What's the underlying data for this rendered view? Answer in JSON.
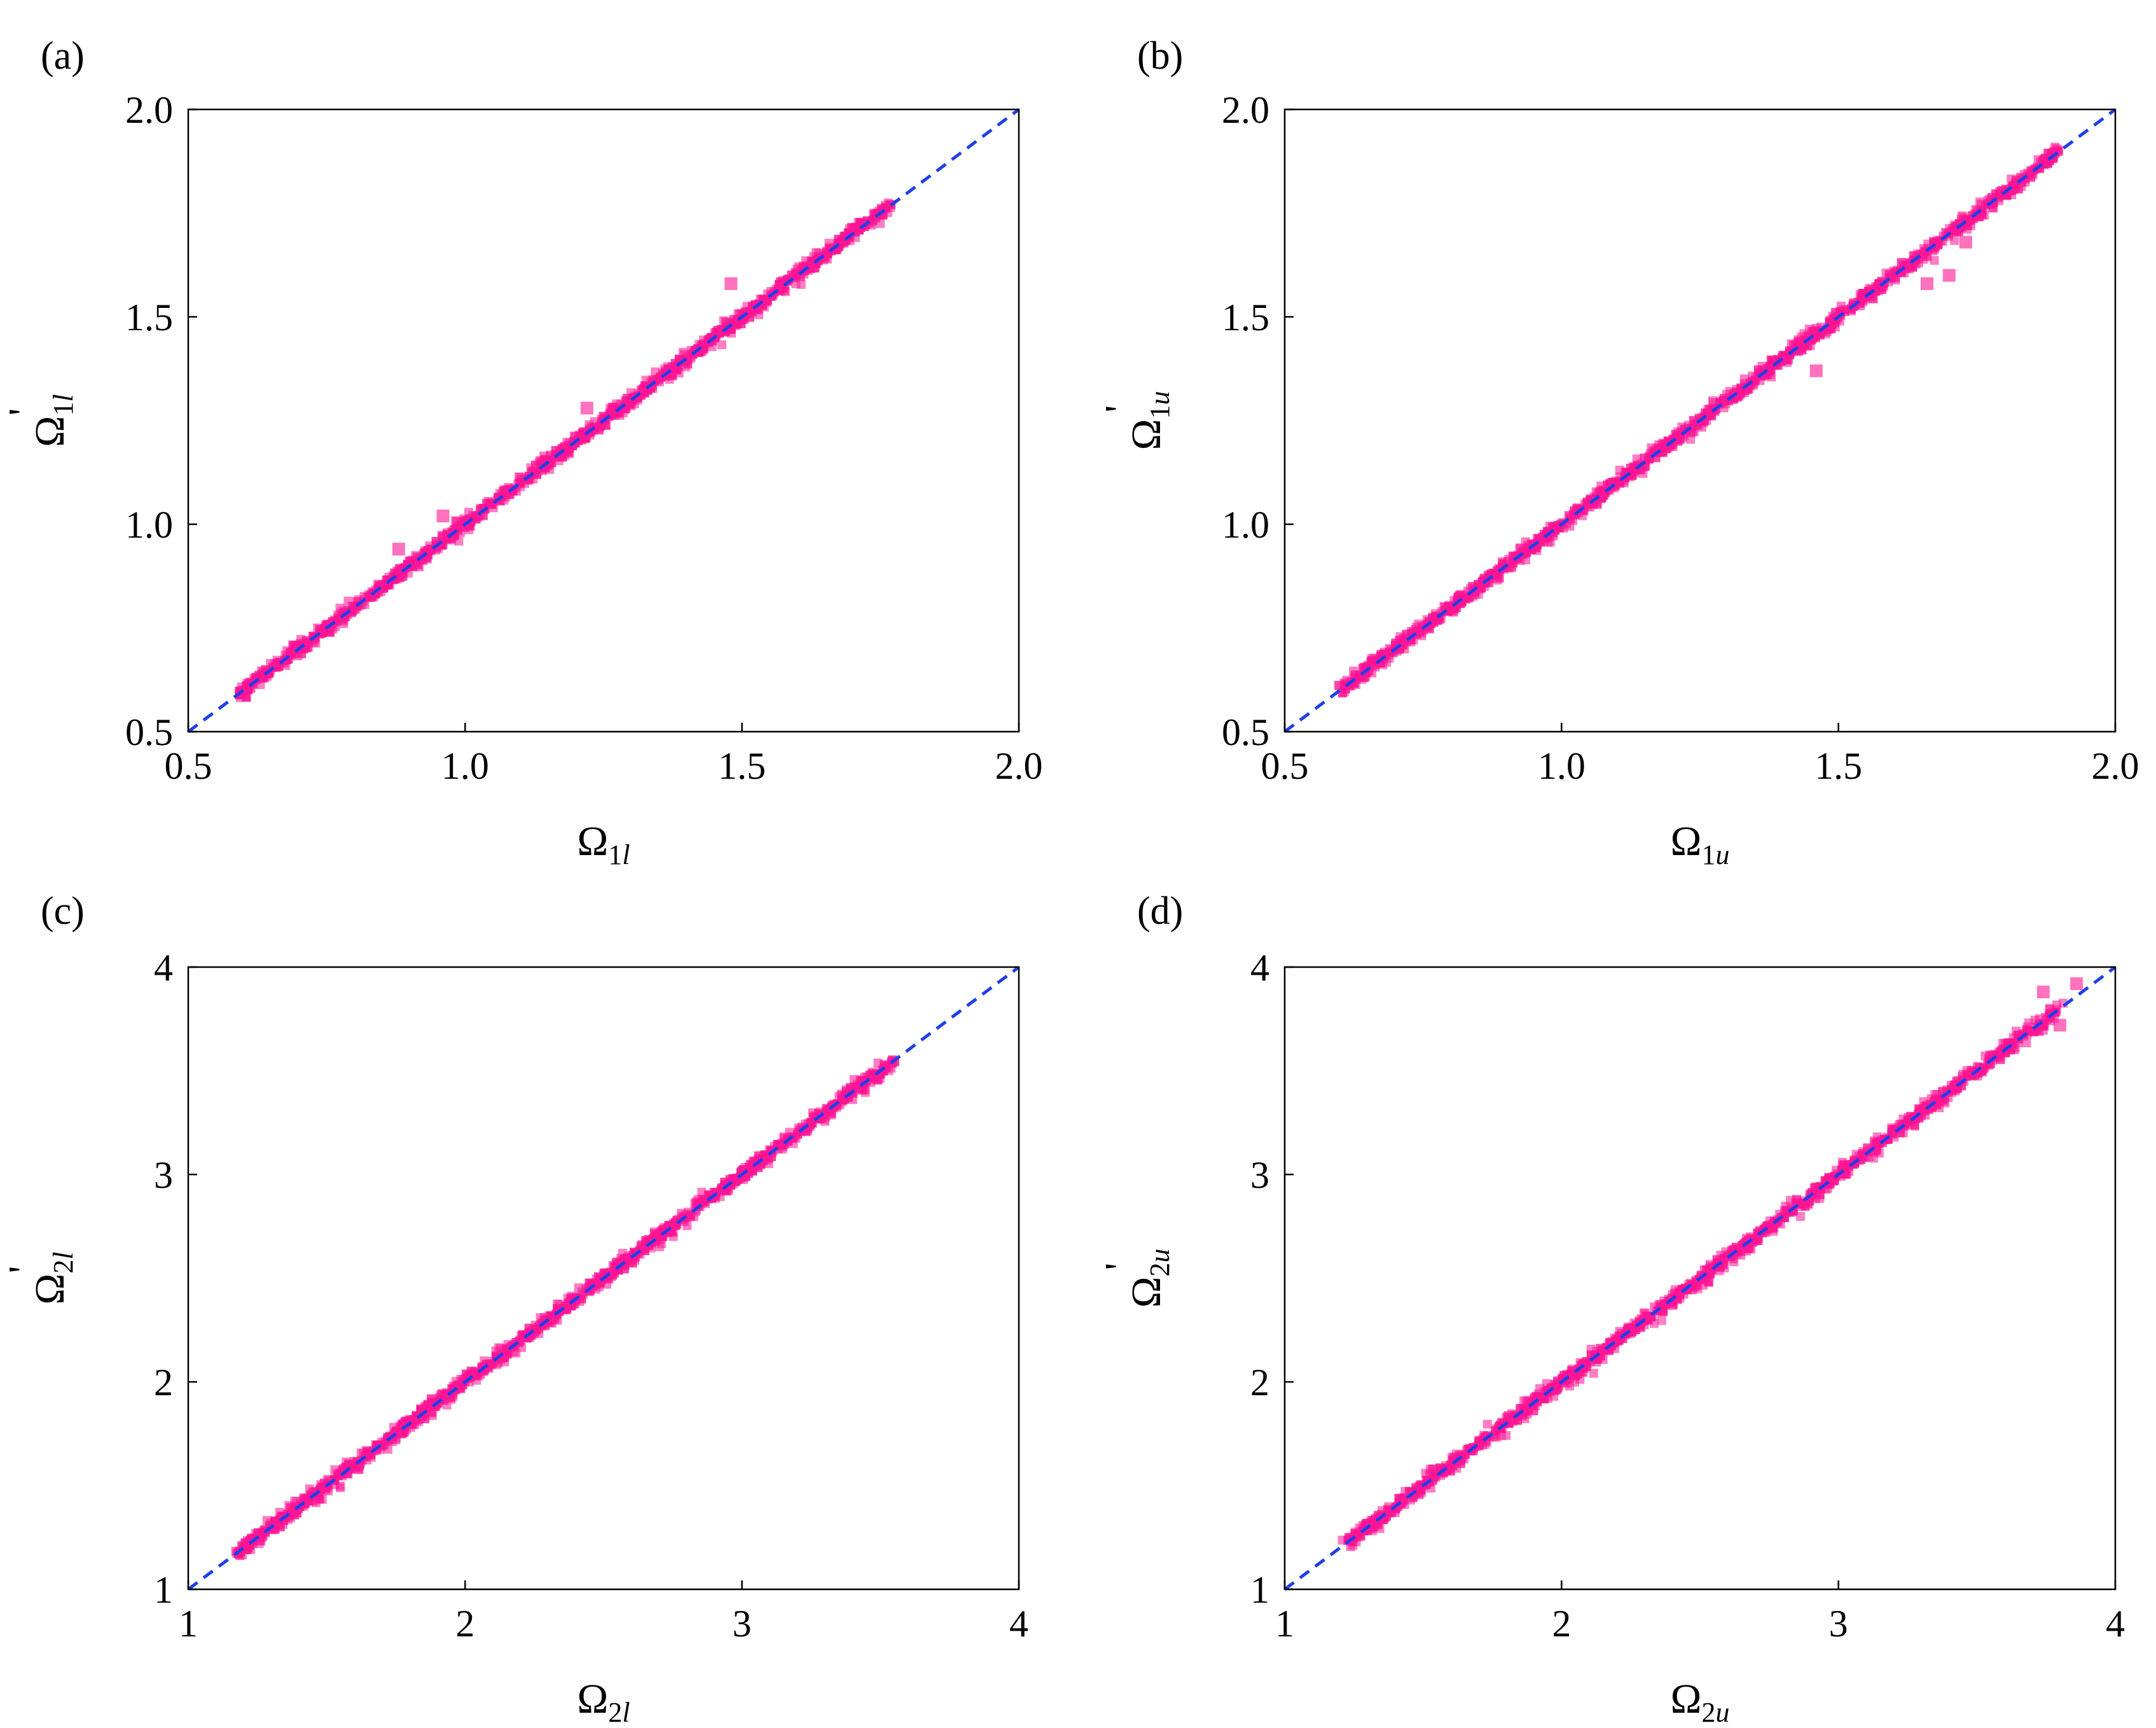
{
  "colors": {
    "points": "#ff1493",
    "reference_line": "#1f3fe8",
    "axes": "#000000",
    "background": "#ffffff"
  },
  "chart_data": [
    {
      "type": "scatter",
      "panel_label": "(a)",
      "title": "",
      "xlabel": {
        "base": "Ω",
        "sub_num": "1",
        "sub_var": "l"
      },
      "ylabel": {
        "base": "Ω",
        "sub_num": "1",
        "sub_var": "l",
        "prime": "'"
      },
      "xlim": [
        0.5,
        2.0
      ],
      "ylim": [
        0.5,
        2.0
      ],
      "xticks": [
        "0.5",
        "1.0",
        "1.5",
        "2.0"
      ],
      "yticks": [
        "0.5",
        "1.0",
        "1.5",
        "2.0"
      ],
      "xtick_values": [
        0.5,
        1.0,
        1.5,
        2.0
      ],
      "ytick_values": [
        0.5,
        1.0,
        1.5,
        2.0
      ],
      "reference_line": {
        "style": "dashed",
        "from": [
          0.5,
          0.5
        ],
        "to": [
          2.0,
          2.0
        ]
      },
      "point_range": [
        0.59,
        1.77
      ],
      "outliers": [
        [
          1.48,
          1.58
        ],
        [
          0.96,
          1.02
        ],
        [
          0.88,
          0.94
        ],
        [
          1.22,
          1.28
        ]
      ],
      "grid": false,
      "legend": "none"
    },
    {
      "type": "scatter",
      "panel_label": "(b)",
      "title": "",
      "xlabel": {
        "base": "Ω",
        "sub_num": "1",
        "sub_var": "u"
      },
      "ylabel": {
        "base": "Ω",
        "sub_num": "1",
        "sub_var": "u",
        "prime": "'"
      },
      "xlim": [
        0.5,
        2.0
      ],
      "ylim": [
        0.5,
        2.0
      ],
      "xticks": [
        "0.5",
        "1.0",
        "1.5",
        "2.0"
      ],
      "yticks": [
        "0.5",
        "1.0",
        "1.5",
        "2.0"
      ],
      "xtick_values": [
        0.5,
        1.0,
        1.5,
        2.0
      ],
      "ytick_values": [
        0.5,
        1.0,
        1.5,
        2.0
      ],
      "reference_line": {
        "style": "dashed",
        "from": [
          0.5,
          0.5
        ],
        "to": [
          2.0,
          2.0
        ]
      },
      "point_range": [
        0.6,
        1.9
      ],
      "outliers": [
        [
          1.46,
          1.37
        ],
        [
          1.7,
          1.6
        ],
        [
          1.66,
          1.58
        ],
        [
          1.73,
          1.68
        ]
      ],
      "grid": false,
      "legend": "none"
    },
    {
      "type": "scatter",
      "panel_label": "(c)",
      "title": "",
      "xlabel": {
        "base": "Ω",
        "sub_num": "2",
        "sub_var": "l"
      },
      "ylabel": {
        "base": "Ω",
        "sub_num": "2",
        "sub_var": "l",
        "prime": "'"
      },
      "xlim": [
        1,
        4
      ],
      "ylim": [
        1,
        4
      ],
      "xticks": [
        "1",
        "2",
        "3",
        "4"
      ],
      "yticks": [
        "1",
        "2",
        "3",
        "4"
      ],
      "xtick_values": [
        1,
        2,
        3,
        4
      ],
      "ytick_values": [
        1,
        2,
        3,
        4
      ],
      "reference_line": {
        "style": "dashed",
        "from": [
          1,
          1
        ],
        "to": [
          4,
          4
        ]
      },
      "point_range": [
        1.17,
        3.55
      ],
      "outliers": [],
      "grid": false,
      "legend": "none"
    },
    {
      "type": "scatter",
      "panel_label": "(d)",
      "title": "",
      "xlabel": {
        "base": "Ω",
        "sub_num": "2",
        "sub_var": "u"
      },
      "ylabel": {
        "base": "Ω",
        "sub_num": "2",
        "sub_var": "u",
        "prime": "'"
      },
      "xlim": [
        1,
        4
      ],
      "ylim": [
        1,
        4
      ],
      "xticks": [
        "1",
        "2",
        "3",
        "4"
      ],
      "yticks": [
        "1",
        "2",
        "3",
        "4"
      ],
      "xtick_values": [
        1,
        2,
        3,
        4
      ],
      "ytick_values": [
        1,
        2,
        3,
        4
      ],
      "reference_line": {
        "style": "dashed",
        "from": [
          1,
          1
        ],
        "to": [
          4,
          4
        ]
      },
      "point_range": [
        1.22,
        3.8
      ],
      "outliers": [
        [
          3.86,
          3.92
        ],
        [
          3.8,
          3.72
        ],
        [
          3.74,
          3.88
        ]
      ],
      "grid": false,
      "legend": "none"
    }
  ]
}
